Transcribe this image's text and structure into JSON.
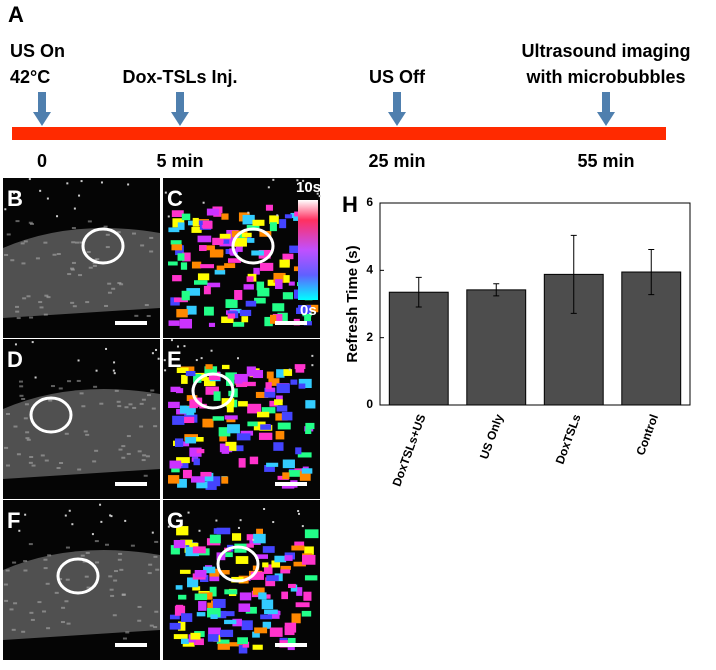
{
  "panel_a": {
    "label": "A",
    "events": [
      {
        "lines": [
          "US On",
          "42°C"
        ],
        "time": "0"
      },
      {
        "lines": [
          "Dox-TSLs Inj."
        ],
        "time": "5 min"
      },
      {
        "lines": [
          "US Off"
        ],
        "time": "25 min"
      },
      {
        "lines": [
          "Ultrasound imaging",
          "with microbubbles"
        ],
        "time": "55 min"
      }
    ]
  },
  "image_panels": {
    "labels": [
      "B",
      "C",
      "D",
      "E",
      "F",
      "G"
    ],
    "colorbar": {
      "max": "10s",
      "min": "0s"
    }
  },
  "chart_data": {
    "type": "bar",
    "label": "H",
    "ylabel": "Refresh Time (s)",
    "categories": [
      "DoxTSLs+US",
      "US Only",
      "DoxTSLs",
      "Control"
    ],
    "values": [
      3.35,
      3.42,
      3.88,
      3.95
    ],
    "errors": [
      0.44,
      0.18,
      1.16,
      0.67
    ],
    "color": "#4d4d4d",
    "ylim": [
      0,
      6
    ],
    "yticks": [
      0,
      2,
      4,
      6
    ]
  }
}
